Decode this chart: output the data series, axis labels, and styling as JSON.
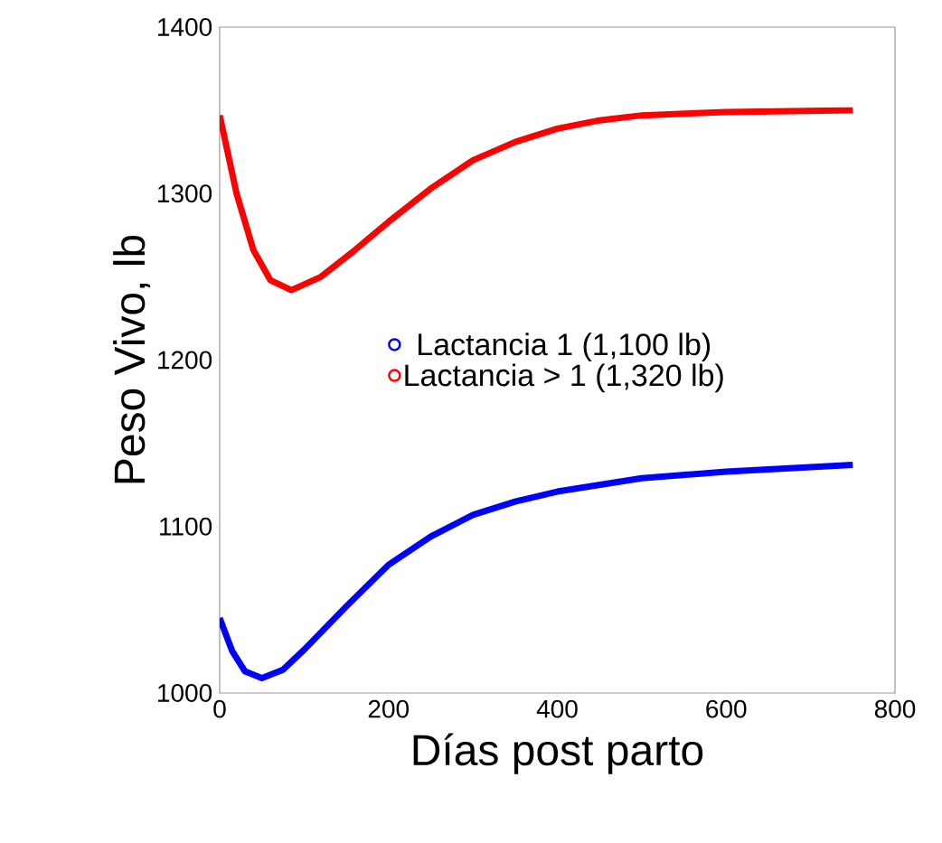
{
  "chart_data": {
    "type": "line",
    "xlabel": "Días post parto",
    "ylabel": "Peso Vivo, lb",
    "xlim": [
      0,
      800
    ],
    "xticks": [
      0,
      200,
      400,
      600,
      800
    ],
    "ylim": [
      1000,
      1400
    ],
    "yticks": [
      1000,
      1100,
      1200,
      1300,
      1400
    ],
    "legend": "center",
    "grid": false,
    "series": [
      {
        "name": "Lactancia 1 (1,100 lb)",
        "color": "#0000ff",
        "x": [
          0,
          15,
          30,
          50,
          75,
          100,
          150,
          200,
          250,
          300,
          350,
          400,
          500,
          600,
          750
        ],
        "values": [
          1045,
          1025,
          1013,
          1009,
          1014,
          1026,
          1052,
          1077,
          1094,
          1107,
          1115,
          1121,
          1129,
          1133,
          1137
        ]
      },
      {
        "name": "Lactancia > 1 (1,320 lb)",
        "color": "#ff0000",
        "x": [
          0,
          20,
          40,
          60,
          85,
          120,
          160,
          200,
          250,
          300,
          350,
          400,
          450,
          500,
          600,
          750
        ],
        "values": [
          1347,
          1300,
          1266,
          1248,
          1242,
          1250,
          1266,
          1283,
          1303,
          1320,
          1331,
          1339,
          1344,
          1347,
          1349,
          1350
        ]
      }
    ]
  }
}
